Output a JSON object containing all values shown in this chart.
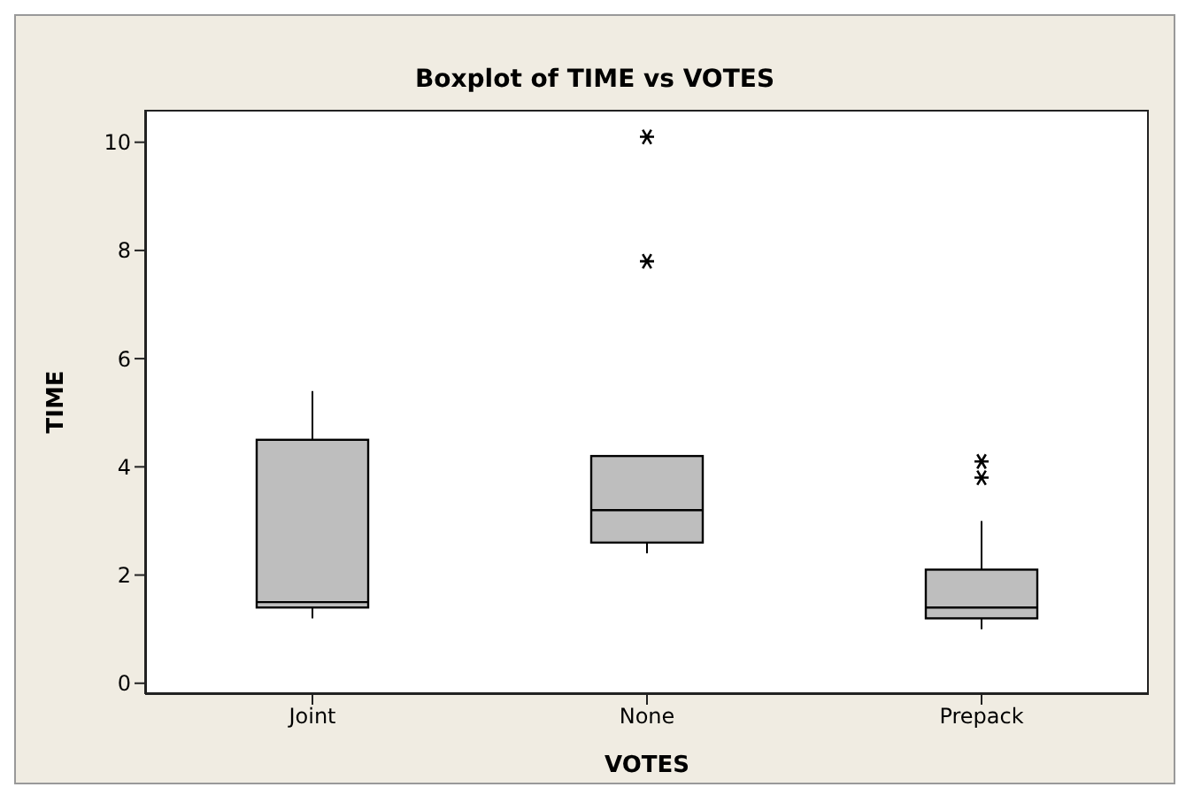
{
  "chart_data": {
    "type": "box",
    "title": "Boxplot of TIME vs VOTES",
    "xlabel": "VOTES",
    "ylabel": "TIME",
    "categories": [
      "Joint",
      "None",
      "Prepack"
    ],
    "boxes": [
      {
        "low": 1.2,
        "q1": 1.4,
        "median": 1.5,
        "q3": 4.5,
        "high": 5.4
      },
      {
        "low": 2.4,
        "q1": 2.6,
        "median": 3.2,
        "q3": 4.2,
        "high": 4.2,
        "outliers": [
          7.8,
          10.1
        ]
      },
      {
        "low": 1.0,
        "q1": 1.2,
        "median": 1.4,
        "q3": 2.1,
        "high": 3.0,
        "outliers": [
          3.8,
          4.1
        ]
      }
    ],
    "color": "#bebebe",
    "marker": "star",
    "grid": false,
    "legend": false,
    "ylim": [
      -0.2,
      10.6
    ],
    "yticks": [
      0,
      2,
      4,
      6,
      8,
      10
    ]
  }
}
